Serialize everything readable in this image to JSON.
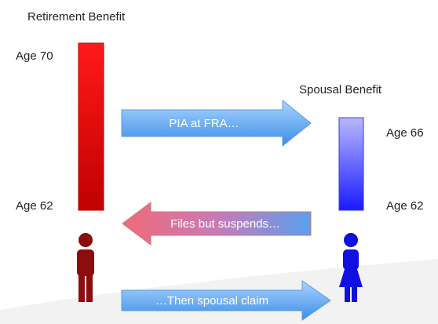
{
  "left": {
    "title": "Retirement Benefit",
    "top_label": "Age 70",
    "bottom_label": "Age 62"
  },
  "right": {
    "title": "Spousal Benefit",
    "top_label": "Age 66",
    "bottom_label": "Age 62"
  },
  "arrows": [
    {
      "label": "PIA at FRA…"
    },
    {
      "label": "Files but suspends…"
    },
    {
      "label": "…Then spousal claim"
    }
  ]
}
